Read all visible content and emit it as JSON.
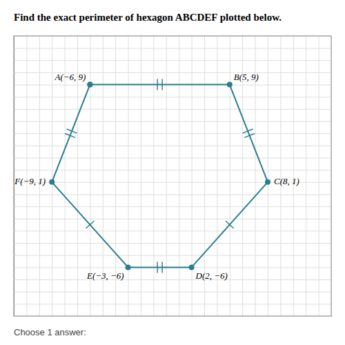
{
  "chart_data": {
    "type": "line",
    "title": "Find the exact perimeter of hexagon ABCDEF plotted below.",
    "footer": "Choose 1 answer:",
    "x": [
      -6,
      5,
      8,
      2,
      -3,
      -9,
      -6
    ],
    "values": [
      9,
      9,
      1,
      -6,
      -6,
      1,
      9
    ],
    "edge_marks": [
      2,
      2,
      1,
      2,
      1,
      2
    ],
    "color": "#2a7d8e",
    "marker": "circle",
    "annotations": [
      {
        "text": "A(−6, 9)",
        "x": -6,
        "y": 9
      },
      {
        "text": "B(5, 9)",
        "x": 5,
        "y": 9
      },
      {
        "text": "C(8, 1)",
        "x": 8,
        "y": 1
      },
      {
        "text": "D(2, −6)",
        "x": 2,
        "y": -6
      },
      {
        "text": "E(−3, −6)",
        "x": -3,
        "y": -6
      },
      {
        "text": "F(−9, 1)",
        "x": -9,
        "y": 1
      }
    ],
    "xlim": [
      -12,
      13
    ],
    "ylim": [
      -10,
      13
    ],
    "xticks": [
      -12,
      -11,
      -10,
      -9,
      -8,
      -7,
      -6,
      -5,
      -4,
      -3,
      -2,
      -1,
      0,
      1,
      2,
      3,
      4,
      5,
      6,
      7,
      8,
      9,
      10,
      11,
      12,
      13
    ],
    "yticks": [
      -10,
      -9,
      -8,
      -7,
      -6,
      -5,
      -4,
      -3,
      -2,
      -1,
      0,
      1,
      2,
      3,
      4,
      5,
      6,
      7,
      8,
      9,
      10,
      11,
      12,
      13
    ],
    "grid": true,
    "tick_labels": false
  }
}
